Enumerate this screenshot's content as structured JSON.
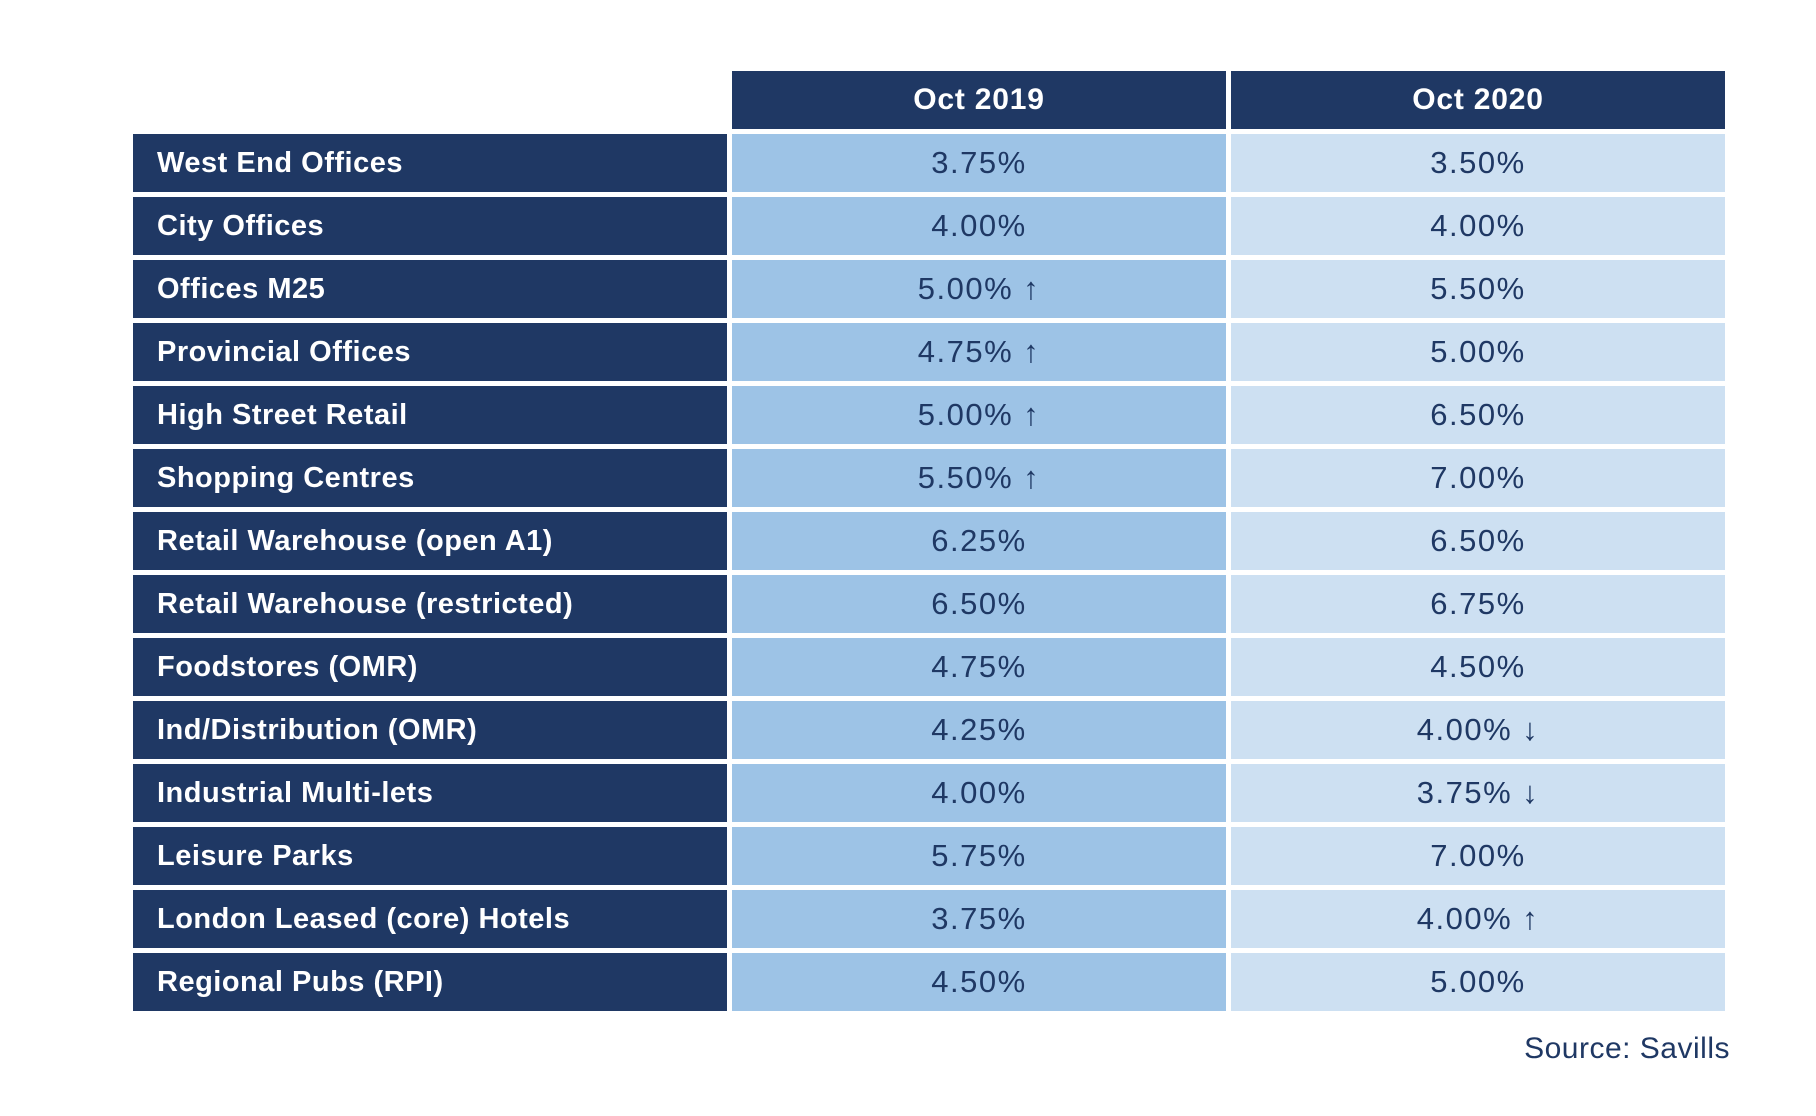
{
  "table": {
    "columns": [
      "Oct 2019",
      "Oct 2020"
    ],
    "rows": [
      {
        "label": "West End Offices",
        "oct2019": "3.75%",
        "oct2020": "3.50%"
      },
      {
        "label": "City Offices",
        "oct2019": "4.00%",
        "oct2020": "4.00%"
      },
      {
        "label": "Offices M25",
        "oct2019": "5.00% ↑",
        "oct2020": "5.50%"
      },
      {
        "label": "Provincial Offices",
        "oct2019": "4.75% ↑",
        "oct2020": "5.00%"
      },
      {
        "label": "High Street Retail",
        "oct2019": "5.00% ↑",
        "oct2020": "6.50%"
      },
      {
        "label": "Shopping Centres",
        "oct2019": "5.50% ↑",
        "oct2020": "7.00%"
      },
      {
        "label": "Retail Warehouse (open A1)",
        "oct2019": "6.25%",
        "oct2020": "6.50%"
      },
      {
        "label": "Retail Warehouse (restricted)",
        "oct2019": "6.50%",
        "oct2020": "6.75%"
      },
      {
        "label": "Foodstores (OMR)",
        "oct2019": "4.75%",
        "oct2020": "4.50%"
      },
      {
        "label": "Ind/Distribution (OMR)",
        "oct2019": "4.25%",
        "oct2020": "4.00% ↓"
      },
      {
        "label": "Industrial Multi-lets",
        "oct2019": "4.00%",
        "oct2020": "3.75% ↓"
      },
      {
        "label": "Leisure Parks",
        "oct2019": "5.75%",
        "oct2020": "7.00%"
      },
      {
        "label": "London Leased (core) Hotels",
        "oct2019": "3.75%",
        "oct2020": "4.00% ↑"
      },
      {
        "label": "Regional Pubs (RPI)",
        "oct2019": "4.50%",
        "oct2020": "5.00%"
      }
    ]
  },
  "source": "Source: Savills",
  "colors": {
    "header_navy": "#1F3864",
    "col_2019_blue": "#9DC3E6",
    "col_2020_blue": "#CDE0F2",
    "value_text": "#1F3864",
    "header_text": "#FFFFFF"
  },
  "chart_data": {
    "type": "table",
    "title": "",
    "categories": [
      "West End Offices",
      "City Offices",
      "Offices M25",
      "Provincial Offices",
      "High Street Retail",
      "Shopping Centres",
      "Retail Warehouse (open A1)",
      "Retail Warehouse (restricted)",
      "Foodstores (OMR)",
      "Ind/Distribution (OMR)",
      "Industrial Multi-lets",
      "Leisure Parks",
      "London Leased (core) Hotels",
      "Regional Pubs (RPI)"
    ],
    "series": [
      {
        "name": "Oct 2019",
        "values": [
          3.75,
          4.0,
          5.0,
          4.75,
          5.0,
          5.5,
          6.25,
          6.5,
          4.75,
          4.25,
          4.0,
          5.75,
          3.75,
          4.5
        ],
        "unit": "%",
        "arrows": [
          "",
          "",
          "up",
          "up",
          "up",
          "up",
          "",
          "",
          "",
          "",
          "",
          "",
          "",
          ""
        ]
      },
      {
        "name": "Oct 2020",
        "values": [
          3.5,
          4.0,
          5.5,
          5.0,
          6.5,
          7.0,
          6.5,
          6.75,
          4.5,
          4.0,
          3.75,
          7.0,
          4.0,
          5.0
        ],
        "unit": "%",
        "arrows": [
          "",
          "",
          "",
          "",
          "",
          "",
          "",
          "",
          "",
          "down",
          "down",
          "",
          "up",
          ""
        ]
      }
    ],
    "annotations": "Source: Savills"
  }
}
